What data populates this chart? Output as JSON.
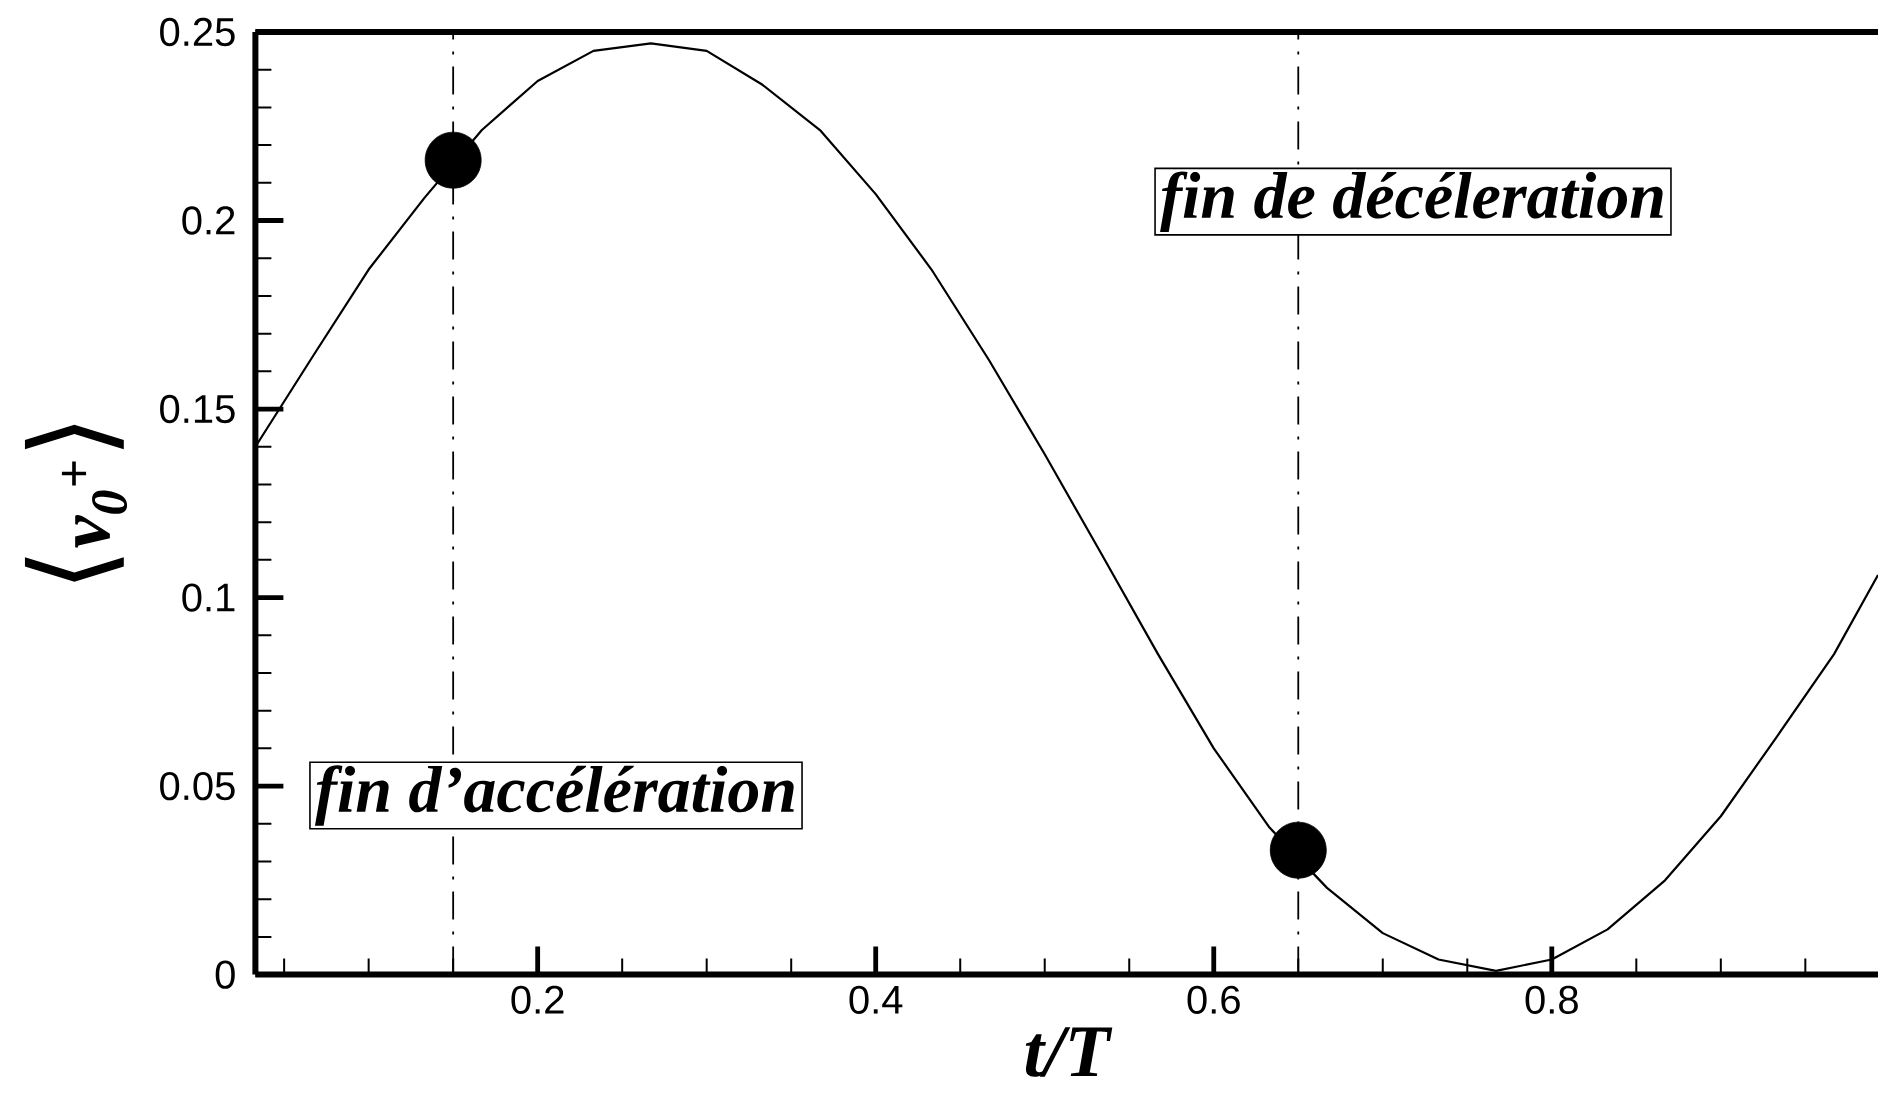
{
  "chart_data": {
    "type": "line",
    "xlabel": "t/T",
    "ylabel": "⟨v$_{0}$$^{+}$⟩",
    "xlim": [
      0.033,
      0.993
    ],
    "ylim": [
      0,
      0.25
    ],
    "xticks": [
      {
        "value": 0.05,
        "label": null
      },
      {
        "value": 0.1,
        "label": null
      },
      {
        "value": 0.15,
        "label": null
      },
      0.2,
      {
        "value": 0.25,
        "label": null
      },
      {
        "value": 0.3,
        "label": null
      },
      {
        "value": 0.35,
        "label": null
      },
      0.4,
      {
        "value": 0.45,
        "label": null
      },
      {
        "value": 0.5,
        "label": null
      },
      {
        "value": 0.55,
        "label": null
      },
      0.6,
      {
        "value": 0.65,
        "label": null
      },
      {
        "value": 0.7,
        "label": null
      },
      {
        "value": 0.75,
        "label": null
      },
      0.8,
      {
        "value": 0.85,
        "label": null
      },
      {
        "value": 0.9,
        "label": null
      },
      {
        "value": 0.95,
        "label": null
      }
    ],
    "yticks": [
      0,
      {
        "value": 0.01,
        "label": null
      },
      {
        "value": 0.02,
        "label": null
      },
      {
        "value": 0.03,
        "label": null
      },
      {
        "value": 0.04,
        "label": null
      },
      0.05,
      {
        "value": 0.06,
        "label": null
      },
      {
        "value": 0.07,
        "label": null
      },
      {
        "value": 0.08,
        "label": null
      },
      {
        "value": 0.09,
        "label": null
      },
      0.1,
      {
        "value": 0.11,
        "label": null
      },
      {
        "value": 0.12,
        "label": null
      },
      {
        "value": 0.13,
        "label": null
      },
      {
        "value": 0.14,
        "label": null
      },
      0.15,
      {
        "value": 0.16,
        "label": null
      },
      {
        "value": 0.17,
        "label": null
      },
      {
        "value": 0.18,
        "label": null
      },
      {
        "value": 0.19,
        "label": null
      },
      0.2,
      {
        "value": 0.21,
        "label": null
      },
      {
        "value": 0.22,
        "label": null
      },
      {
        "value": 0.23,
        "label": null
      },
      {
        "value": 0.24,
        "label": null
      },
      0.25
    ],
    "series": [
      {
        "type": "line",
        "color": "#000000",
        "marker": "none",
        "x": [
          0.033,
          0.067,
          0.1,
          0.133,
          0.167,
          0.2,
          0.233,
          0.267,
          0.3,
          0.333,
          0.367,
          0.4,
          0.433,
          0.467,
          0.5,
          0.533,
          0.567,
          0.6,
          0.633,
          0.667,
          0.7,
          0.733,
          0.767,
          0.8,
          0.833,
          0.867,
          0.9,
          0.933,
          0.967,
          0.993
        ],
        "values": [
          0.14,
          0.164,
          0.187,
          0.206,
          0.224,
          0.237,
          0.245,
          0.247,
          0.245,
          0.236,
          0.224,
          0.207,
          0.187,
          0.163,
          0.138,
          0.112,
          0.085,
          0.06,
          0.039,
          0.023,
          0.011,
          0.004,
          0.001,
          0.004,
          0.012,
          0.025,
          0.042,
          0.063,
          0.085,
          0.106
        ]
      },
      {
        "type": "scatter",
        "color": "#000000",
        "marker": "circle",
        "x": [
          0.15,
          0.65
        ],
        "values": [
          0.216,
          0.033
        ]
      }
    ],
    "ref_lines": [
      {
        "axis": "x",
        "value": 0.15,
        "label": "fin d’accélération",
        "color": "#000000",
        "line_style": "dashdot"
      },
      {
        "axis": "x",
        "value": 0.65,
        "label": "fin de décéleration",
        "color": "#000000",
        "line_style": "dashdot"
      }
    ]
  }
}
